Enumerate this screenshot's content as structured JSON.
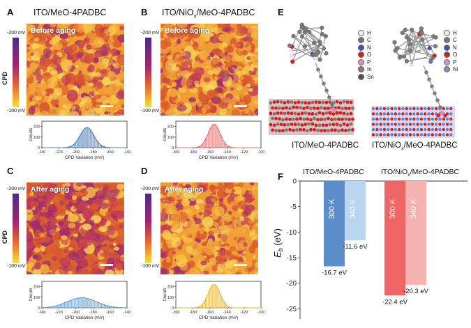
{
  "panels": {
    "A": {
      "letter": "A",
      "title": "ITO/MeO-4PADBC",
      "tag": "Before aging"
    },
    "B": {
      "letter": "B",
      "title_main": "ITO/NiO",
      "title_sub": "x",
      "title_end": "/MeO-4PADBC",
      "tag": "Before aging"
    },
    "C": {
      "letter": "C",
      "tag": "After aging"
    },
    "D": {
      "letter": "D",
      "tag": "After aging"
    },
    "E": {
      "letter": "E",
      "label_left": "ITO/MeO-4PADBC",
      "label_right_main": "ITO/NiO",
      "label_right_sub": "x",
      "label_right_end": "/MeO-4PADBC"
    },
    "F": {
      "letter": "F"
    }
  },
  "colorbar": {
    "top": "-200 mV",
    "bottom": "-100 mV",
    "title": "CPD"
  },
  "hist_labels": {
    "ylabel": "Counts",
    "xlabel": "CPD Variation (mV)"
  },
  "legend_left": {
    "items": [
      "H",
      "C",
      "N",
      "O",
      "P",
      "In",
      "Sn"
    ],
    "colors": [
      "#eeeeee",
      "#777777",
      "#3b55b5",
      "#d92020",
      "#e08fb0",
      "#a07070",
      "#555555"
    ]
  },
  "legend_right": {
    "items": [
      "H",
      "C",
      "N",
      "O",
      "P",
      "Ni"
    ],
    "colors": [
      "#eeeeee",
      "#777777",
      "#3b55b5",
      "#d92020",
      "#e08fb0",
      "#7f8fd0"
    ]
  },
  "chart_data": [
    {
      "type": "bar",
      "panel": "A",
      "ylabel": "Counts",
      "xlabel": "CPD Variation (mV)",
      "xlim": [
        -240,
        -140
      ],
      "ylim": [
        0,
        250
      ],
      "xticks": [
        -240,
        -220,
        -200,
        -180,
        -160,
        -140
      ],
      "yticks": [
        0,
        100,
        200
      ],
      "color": "#4a7fb8",
      "mean": -187,
      "sd": 8,
      "peak": 190
    },
    {
      "type": "bar",
      "panel": "B",
      "ylabel": "Counts",
      "xlabel": "CPD Variation (mV)",
      "xlim": [
        -200,
        -100
      ],
      "ylim": [
        0,
        250
      ],
      "xticks": [
        -200,
        -180,
        -160,
        -140,
        -120,
        -100
      ],
      "yticks": [
        0,
        100,
        200
      ],
      "color": "#e07070",
      "mean": -155,
      "sd": 7,
      "peak": 220
    },
    {
      "type": "bar",
      "panel": "C",
      "ylabel": "Counts",
      "xlabel": "CPD Variation (mV)",
      "xlim": [
        -240,
        -140
      ],
      "ylim": [
        0,
        250
      ],
      "xticks": [
        -240,
        -220,
        -200,
        -180,
        -160,
        -140
      ],
      "yticks": [
        0,
        100,
        200
      ],
      "color": "#6a9fd0",
      "mean": -193,
      "sd": 17,
      "peak": 95
    },
    {
      "type": "bar",
      "panel": "D",
      "ylabel": "Counts",
      "xlabel": "CPD Variation (mV)",
      "xlim": [
        -200,
        -100
      ],
      "ylim": [
        0,
        250
      ],
      "xticks": [
        -200,
        -180,
        -160,
        -140,
        -120,
        -100
      ],
      "yticks": [
        0,
        100,
        200
      ],
      "color": "#e8b830",
      "mean": -155,
      "sd": 7,
      "peak": 220
    },
    {
      "type": "bar",
      "panel": "F",
      "ylabel": "E_b (eV)",
      "ylim": [
        -27,
        0
      ],
      "yticks": [
        0,
        -5,
        -10,
        -15,
        -20,
        -25
      ],
      "group_labels": [
        "ITO/MeO-4PADBC",
        "ITO/NiOx/MeO-4PADBC"
      ],
      "bars": [
        {
          "group": "ITO/MeO-4PADBC",
          "name": "300 K",
          "value": -16.7,
          "label": "-16.7 eV",
          "color": "#5b8ec9"
        },
        {
          "group": "ITO/MeO-4PADBC",
          "name": "340 K",
          "value": -11.6,
          "label": "-11.6 eV",
          "color": "#b8d6f1"
        },
        {
          "group": "ITO/NiOx/MeO-4PADBC",
          "name": "300 K",
          "value": -22.4,
          "label": "-22.4 eV",
          "color": "#ef6464"
        },
        {
          "group": "ITO/NiOx/MeO-4PADBC",
          "name": "340 K",
          "value": -20.3,
          "label": "-20.3 eV",
          "color": "#f6b1b1"
        }
      ]
    }
  ]
}
